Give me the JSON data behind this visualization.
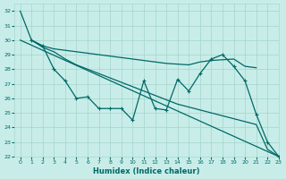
{
  "xlabel": "Humidex (Indice chaleur)",
  "bg_color": "#c8ede8",
  "grid_color": "#a8d8d0",
  "line_color": "#006868",
  "xlim": [
    -0.5,
    23
  ],
  "ylim": [
    22,
    32.5
  ],
  "xticks": [
    0,
    1,
    2,
    3,
    4,
    5,
    6,
    7,
    8,
    9,
    10,
    11,
    12,
    13,
    14,
    15,
    16,
    17,
    18,
    19,
    20,
    21,
    22,
    23
  ],
  "yticks": [
    22,
    23,
    24,
    25,
    26,
    27,
    28,
    29,
    30,
    31,
    32
  ],
  "line_top_flat": {
    "x": [
      0,
      1,
      2,
      3,
      4,
      5,
      6,
      7,
      8,
      9,
      10,
      11,
      12,
      13,
      14,
      15,
      16,
      17,
      18,
      19,
      20,
      21
    ],
    "y": [
      32,
      30.0,
      29.6,
      29.4,
      29.3,
      29.2,
      29.1,
      29.0,
      28.9,
      28.8,
      28.7,
      28.6,
      28.5,
      28.4,
      28.35,
      28.3,
      28.5,
      28.6,
      28.65,
      28.7,
      28.2,
      28.1
    ]
  },
  "line_long_diag": {
    "x": [
      0,
      23
    ],
    "y": [
      30.0,
      22.0
    ]
  },
  "line_middle_marker": {
    "x": [
      1,
      2,
      3,
      4,
      5,
      6,
      7,
      8,
      9,
      10,
      11,
      12,
      13,
      14,
      15,
      16,
      17,
      18,
      19,
      20,
      21,
      22,
      23
    ],
    "y": [
      30.0,
      29.6,
      28.0,
      27.2,
      26.0,
      26.1,
      25.3,
      25.3,
      25.3,
      24.5,
      27.2,
      25.3,
      25.2,
      27.3,
      26.5,
      27.7,
      28.7,
      29.0,
      28.2,
      27.2,
      24.9,
      23.0,
      22.0
    ]
  },
  "line_bottom_flat": {
    "x": [
      1,
      2,
      3,
      4,
      5,
      6,
      7,
      8,
      9,
      10,
      11,
      12,
      13,
      14,
      15,
      16,
      17,
      18,
      19,
      20,
      21,
      22,
      23
    ],
    "y": [
      30.0,
      29.5,
      29.2,
      28.7,
      28.3,
      28.0,
      27.7,
      27.4,
      27.1,
      26.8,
      26.5,
      26.2,
      25.9,
      25.6,
      25.4,
      25.2,
      25.0,
      24.8,
      24.6,
      24.4,
      24.2,
      22.5,
      22.0
    ]
  }
}
